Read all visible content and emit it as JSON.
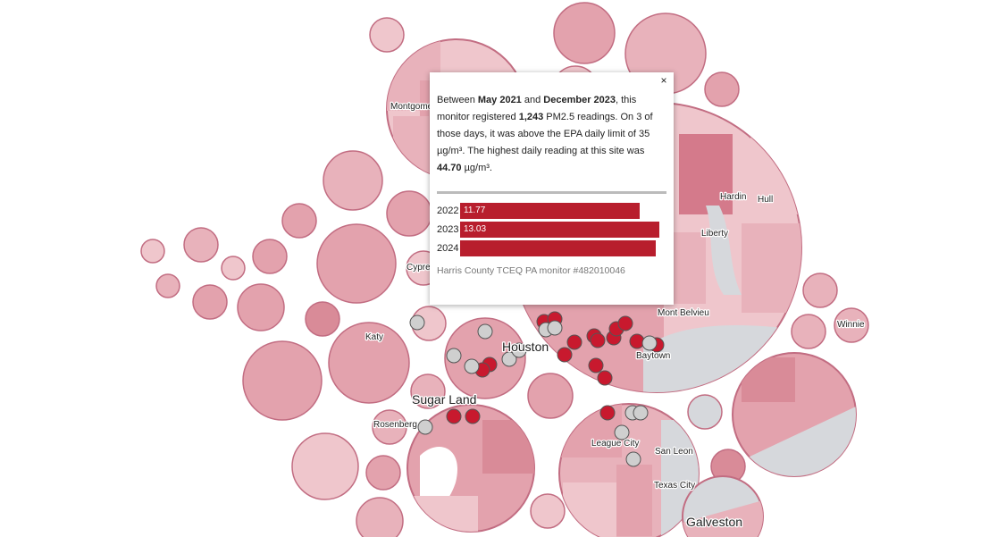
{
  "popup": {
    "close_label": "×",
    "desc": {
      "t1": "Between ",
      "start": "May 2021",
      "t2": " and ",
      "end": "December 2023",
      "t3": ", this monitor registered ",
      "count": "1,243",
      "t4": " PM2.5 readings. On 3 of those days, it was above the EPA daily limit of 35 µg/m³. The highest daily reading at this site was ",
      "max": "44.70",
      "t5": " µg/m³."
    },
    "bars": [
      {
        "year": "2022",
        "value": 11.77,
        "label": "11.77"
      },
      {
        "year": "2023",
        "value": 13.03,
        "label": "13.03"
      },
      {
        "year": "2024",
        "value": 12.8,
        "label": ""
      }
    ],
    "bar_max": 13.5,
    "monitor_label": "Harris County TCEQ PA monitor #482010046"
  },
  "places": [
    "Montgomery",
    "Katy",
    "Sugar Land",
    "Rosenberg",
    "Cypress",
    "Houston",
    "Hardin",
    "Hull",
    "Liberty",
    "Mont Belvieu",
    "Winnie",
    "Baytown",
    "League City",
    "San Leon",
    "Texas City",
    "Galveston"
  ],
  "colors": {
    "fill_light": "#efc6cc",
    "fill_mid": "#e3a2ad",
    "fill_dark": "#d47a8b",
    "outline": "#c26d82",
    "water": "#d6d8dc",
    "monitor_red": "#c8192e",
    "monitor_gray": "#cfcfcf",
    "bar": "#b81e2d"
  }
}
